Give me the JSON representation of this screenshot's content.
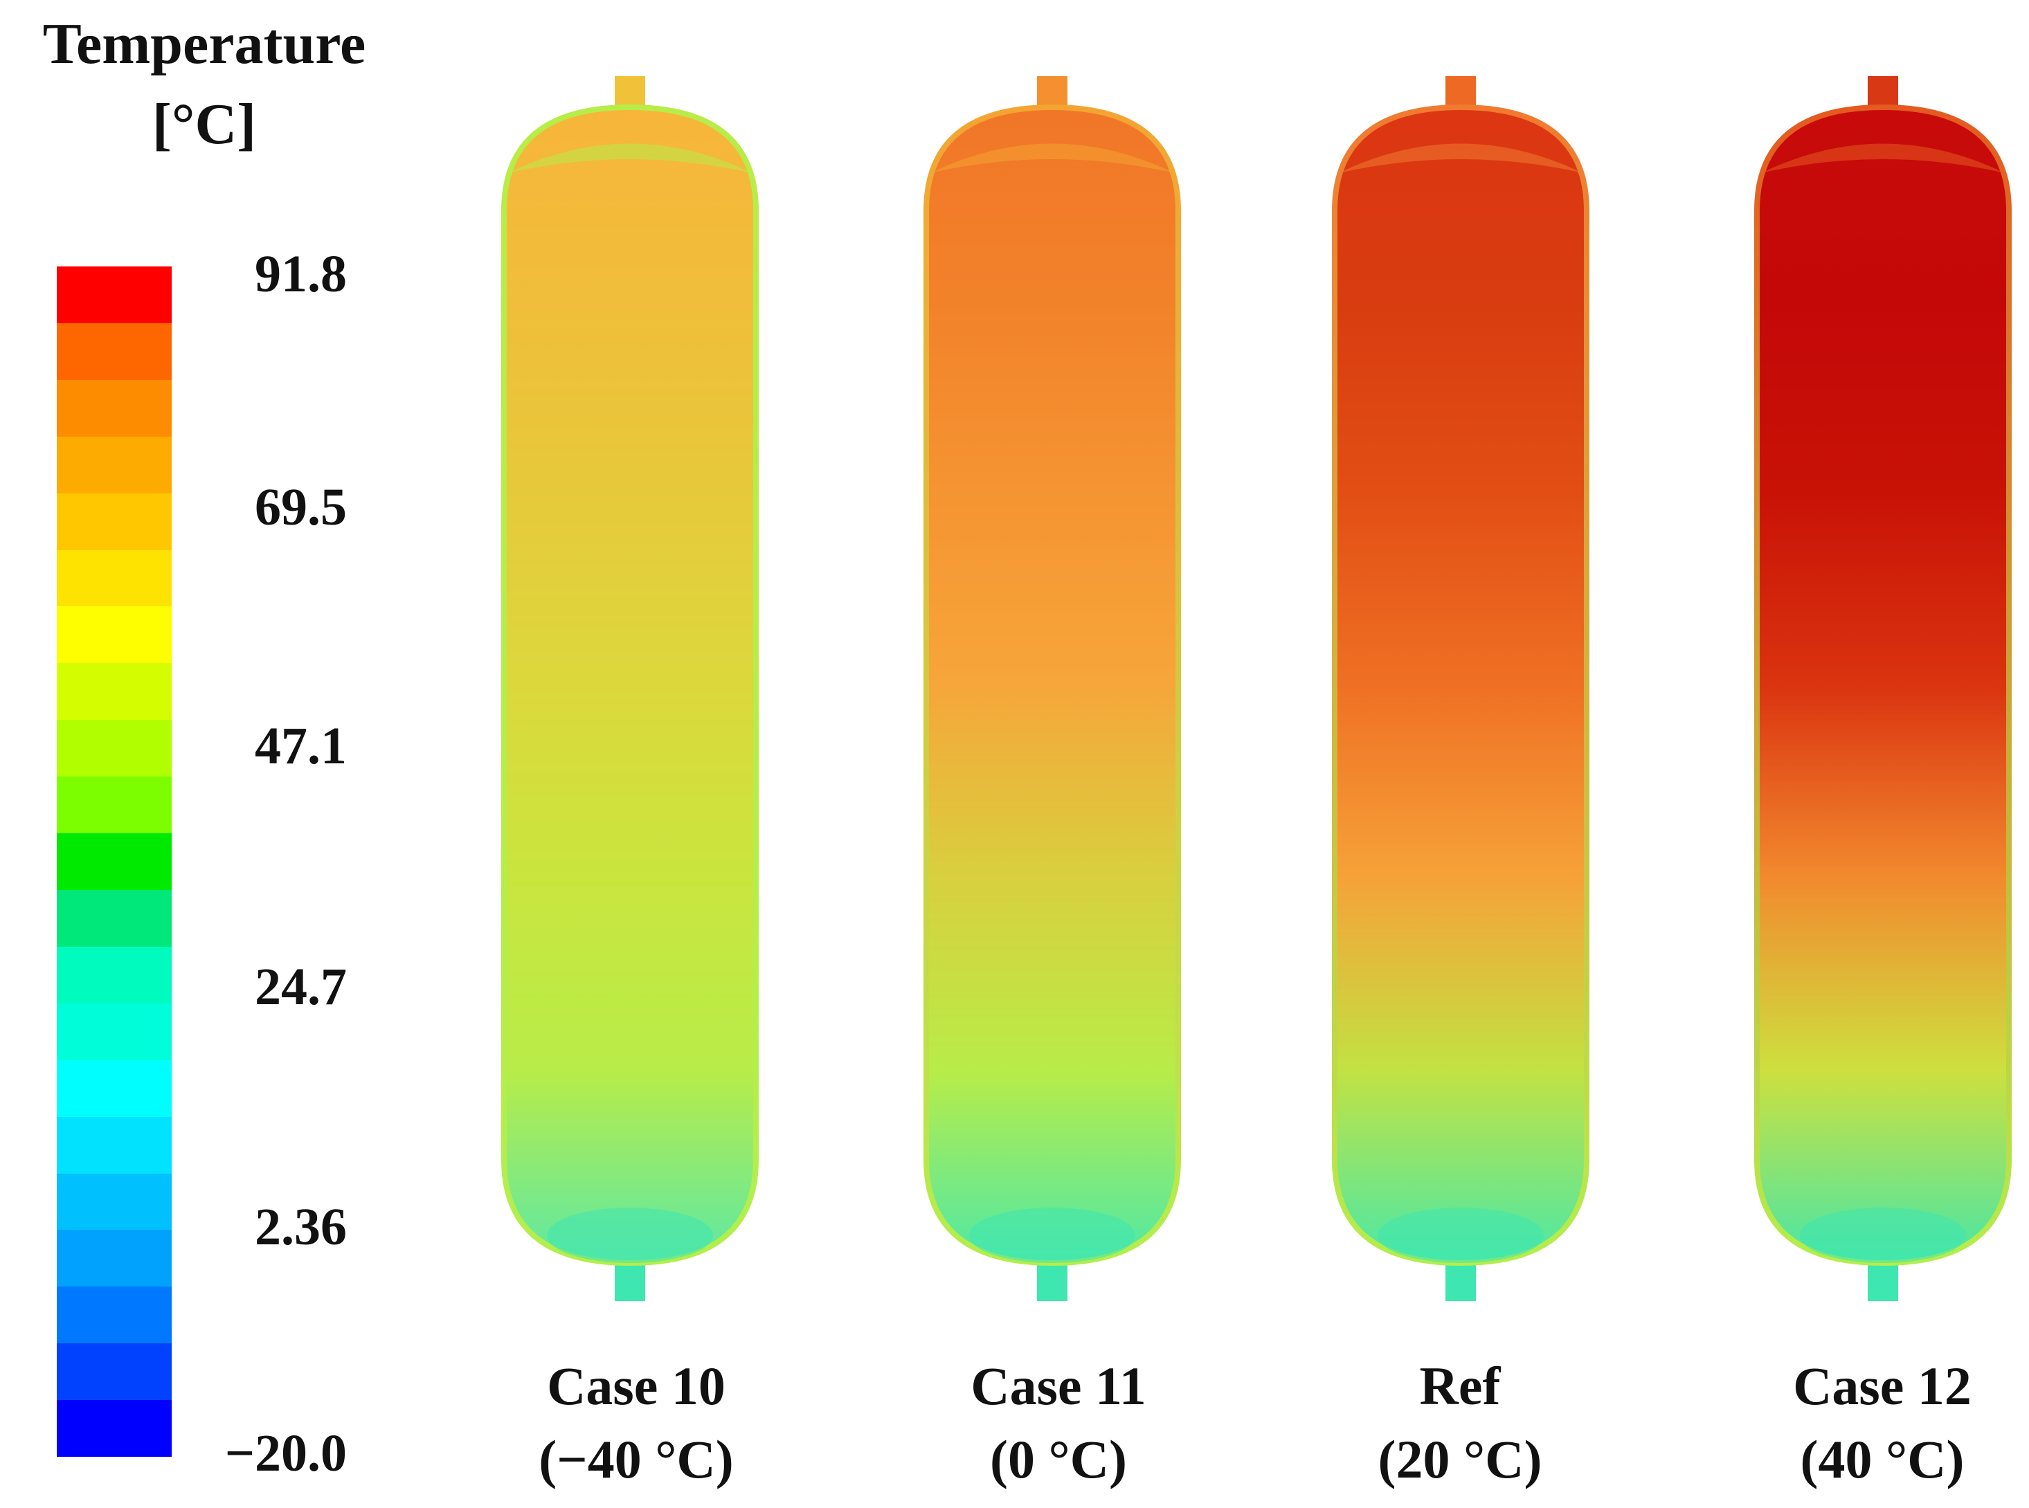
{
  "legend": {
    "title_line1": "Temperature",
    "title_line2": "[°C]",
    "ticks": [
      "91.8",
      "69.5",
      "47.1",
      "24.7",
      "2.36",
      "−20.0"
    ],
    "bands": [
      "#fe0000",
      "#fe6700",
      "#fe8c00",
      "#feab00",
      "#fec700",
      "#fee200",
      "#fefe00",
      "#d4fe00",
      "#b0fe00",
      "#7cfe00",
      "#00ea00",
      "#00e879",
      "#00fbbe",
      "#00fdda",
      "#00feff",
      "#00e2ff",
      "#00c0fe",
      "#00a2fe",
      "#0078ff",
      "#0042ff",
      "#0000fe"
    ]
  },
  "cases": [
    {
      "name": "Case 10",
      "condition": "(−40 °C)",
      "gradient": [
        "#f7b53a",
        "#f0be3a",
        "#e6c93a",
        "#dcd83c",
        "#c9e53e",
        "#b8ec48",
        "#5ee8a5"
      ],
      "dome_color": "#b8ec48",
      "neck_top": "#f0c23a",
      "neck_bottom": "#3ee6b0"
    },
    {
      "name": "Case 11",
      "condition": "(0 °C)",
      "gradient": [
        "#f17628",
        "#f2822a",
        "#f59432",
        "#f6a63a",
        "#d8d03e",
        "#b8ec48",
        "#4fe8a8"
      ],
      "dome_color": "#f4a432",
      "neck_top": "#f49030",
      "neck_bottom": "#3ee6b0"
    },
    {
      "name": "Ref",
      "condition": "(20 °C)",
      "gradient": [
        "#dc3612",
        "#d83c10",
        "#e24e14",
        "#ef7024",
        "#f6a238",
        "#c2e242",
        "#4be8a8"
      ],
      "dome_color": "#f07a30",
      "neck_top": "#ee6a24",
      "neck_bottom": "#3ee6b0"
    },
    {
      "name": "Case 12",
      "condition": "(40 °C)",
      "gradient": [
        "#c80a0a",
        "#c40808",
        "#c81206",
        "#da3410",
        "#f28a2e",
        "#cde03e",
        "#48e6a8"
      ],
      "dome_color": "#e45a20",
      "neck_top": "#d83814",
      "neck_bottom": "#3ee6b0"
    }
  ]
}
